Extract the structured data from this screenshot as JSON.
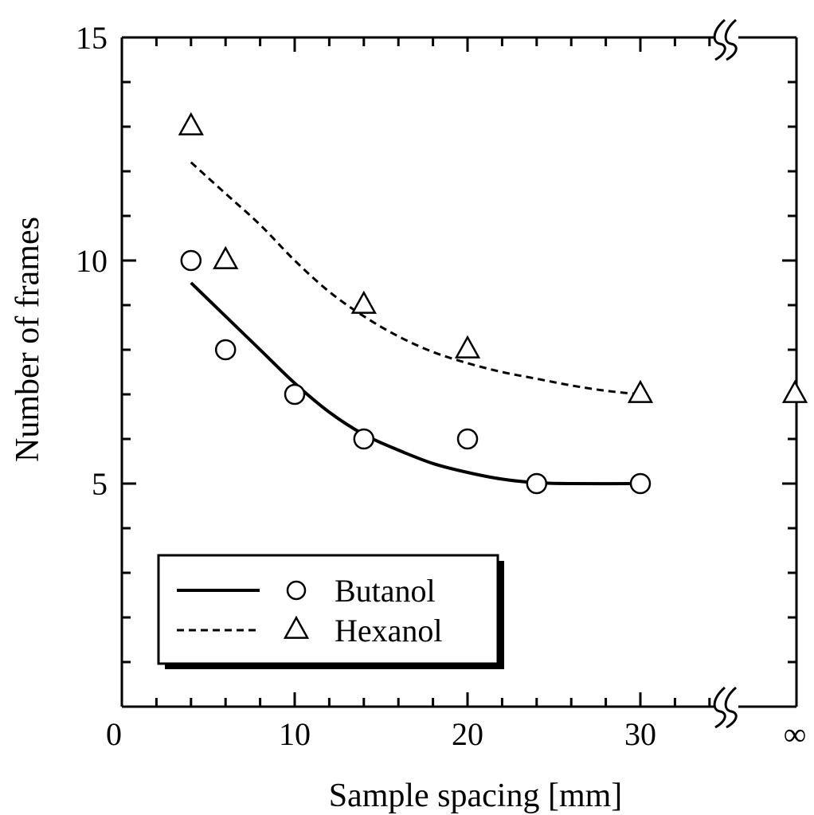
{
  "chart_data": {
    "type": "line",
    "xlabel": "Sample spacing  [mm]",
    "ylabel": "Number of frames",
    "xlim": [
      0,
      39
    ],
    "ylim": [
      0,
      15
    ],
    "x_ticks": [
      "0",
      "10",
      "20",
      "30",
      "∞"
    ],
    "y_ticks": [
      "5",
      "10",
      "15"
    ],
    "x_axis_break": "between 30 and ∞",
    "grid": false,
    "legend_position": "bottom-left",
    "series": [
      {
        "name": "Butanol",
        "marker": "circle",
        "line_style": "solid",
        "points": [
          {
            "x": 4,
            "y": 10
          },
          {
            "x": 6,
            "y": 8
          },
          {
            "x": 10,
            "y": 7
          },
          {
            "x": 14,
            "y": 6
          },
          {
            "x": 20,
            "y": 6
          },
          {
            "x": 24,
            "y": 5
          },
          {
            "x": 30,
            "y": 5
          }
        ],
        "fit": [
          {
            "x": 4,
            "y": 9.5
          },
          {
            "x": 6,
            "y": 8.75
          },
          {
            "x": 8,
            "y": 8.0
          },
          {
            "x": 10,
            "y": 7.25
          },
          {
            "x": 12,
            "y": 6.6
          },
          {
            "x": 14,
            "y": 6.1
          },
          {
            "x": 16,
            "y": 5.75
          },
          {
            "x": 18,
            "y": 5.45
          },
          {
            "x": 20,
            "y": 5.25
          },
          {
            "x": 22,
            "y": 5.1
          },
          {
            "x": 24,
            "y": 5.02
          },
          {
            "x": 26,
            "y": 5.0
          },
          {
            "x": 30,
            "y": 5.0
          }
        ]
      },
      {
        "name": "Hexanol",
        "marker": "triangle",
        "line_style": "dashed",
        "points": [
          {
            "x": 4,
            "y": 13
          },
          {
            "x": 6,
            "y": 10
          },
          {
            "x": 14,
            "y": 9
          },
          {
            "x": 20,
            "y": 8
          },
          {
            "x": 30,
            "y": 7
          },
          {
            "x": "∞",
            "y": 7
          }
        ],
        "fit": [
          {
            "x": 4,
            "y": 12.2
          },
          {
            "x": 6,
            "y": 11.5
          },
          {
            "x": 8,
            "y": 10.8
          },
          {
            "x": 10,
            "y": 10.0
          },
          {
            "x": 12,
            "y": 9.3
          },
          {
            "x": 14,
            "y": 8.75
          },
          {
            "x": 16,
            "y": 8.3
          },
          {
            "x": 18,
            "y": 7.95
          },
          {
            "x": 20,
            "y": 7.7
          },
          {
            "x": 22,
            "y": 7.5
          },
          {
            "x": 24,
            "y": 7.35
          },
          {
            "x": 26,
            "y": 7.2
          },
          {
            "x": 28,
            "y": 7.08
          },
          {
            "x": 30,
            "y": 7.0
          }
        ]
      }
    ]
  }
}
